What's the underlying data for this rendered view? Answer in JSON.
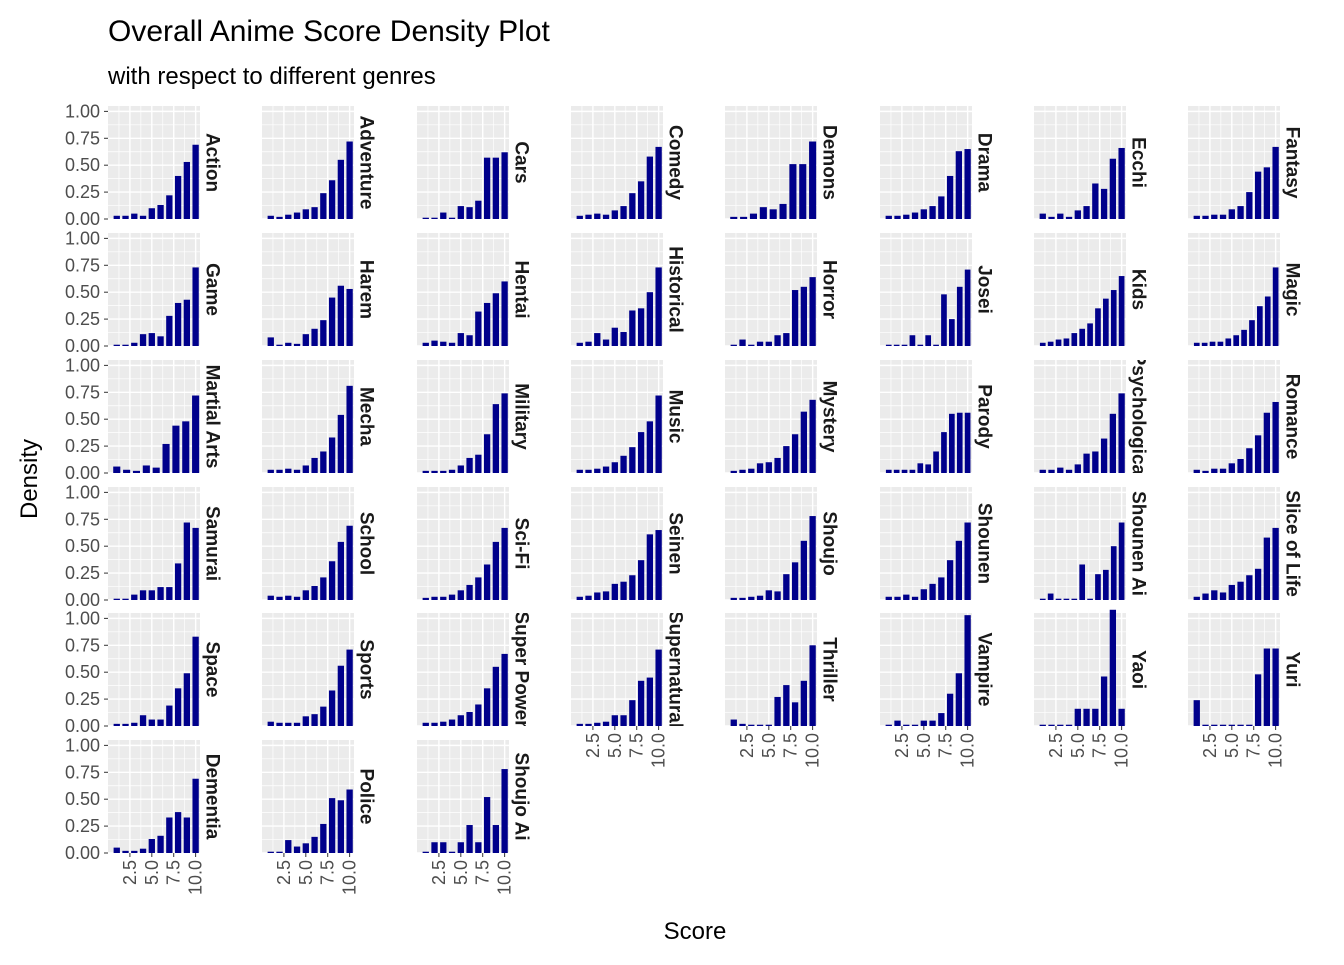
{
  "chart_data": {
    "type": "bar",
    "title": "Overall Anime Score Density Plot",
    "subtitle": "with respect to different genres",
    "xlabel": "Score",
    "ylabel": "Density",
    "x_ticks": [
      "2.5",
      "5.0",
      "7.5",
      "10.0"
    ],
    "y_ticks": [
      "0.00",
      "0.25",
      "0.50",
      "0.75",
      "1.00"
    ],
    "xlim": [
      0,
      10.5
    ],
    "ylim": [
      0,
      1.05
    ],
    "bin_centers": [
      1,
      2,
      3,
      4,
      5,
      6,
      7,
      8,
      9,
      10
    ],
    "bar_color": "#00008B",
    "panel_background": "#EBEBEB",
    "gridline_color": "#FFFFFF",
    "grid": true,
    "facet_strip_position": "right",
    "panels": [
      {
        "genre": "Action",
        "strip_label": "Action",
        "values": [
          0.03,
          0.03,
          0.05,
          0.03,
          0.1,
          0.13,
          0.22,
          0.4,
          0.53,
          0.69
        ]
      },
      {
        "genre": "Adventure",
        "strip_label": "Adventure",
        "values": [
          0.03,
          0.02,
          0.04,
          0.06,
          0.09,
          0.11,
          0.24,
          0.36,
          0.55,
          0.72
        ]
      },
      {
        "genre": "Cars",
        "strip_label": "Cars",
        "values": [
          0.0,
          0.0,
          0.06,
          0.0,
          0.12,
          0.11,
          0.17,
          0.57,
          0.57,
          0.62
        ]
      },
      {
        "genre": "Comedy",
        "strip_label": "Comedy",
        "values": [
          0.03,
          0.04,
          0.05,
          0.04,
          0.08,
          0.12,
          0.24,
          0.35,
          0.58,
          0.67
        ]
      },
      {
        "genre": "Demons",
        "strip_label": "Demons",
        "values": [
          0.02,
          0.02,
          0.05,
          0.11,
          0.09,
          0.14,
          0.51,
          0.51,
          0.72
        ]
      },
      {
        "genre": "Drama",
        "strip_label": "Drama",
        "values": [
          0.03,
          0.03,
          0.04,
          0.06,
          0.09,
          0.12,
          0.21,
          0.4,
          0.63,
          0.65
        ]
      },
      {
        "genre": "Ecchi",
        "strip_label": "Ecchi",
        "values": [
          0.05,
          0.02,
          0.05,
          0.02,
          0.08,
          0.12,
          0.33,
          0.28,
          0.56,
          0.66
        ]
      },
      {
        "genre": "Fantasy",
        "strip_label": "Fantasy",
        "values": [
          0.03,
          0.03,
          0.04,
          0.04,
          0.09,
          0.12,
          0.25,
          0.44,
          0.48,
          0.67
        ]
      },
      {
        "genre": "Game",
        "strip_label": "Game",
        "values": [
          0.0,
          0.0,
          0.03,
          0.11,
          0.12,
          0.09,
          0.28,
          0.4,
          0.43,
          0.73
        ]
      },
      {
        "genre": "Harem",
        "strip_label": "Harem",
        "values": [
          0.08,
          0.0,
          0.03,
          0.02,
          0.11,
          0.16,
          0.24,
          0.45,
          0.56,
          0.53
        ]
      },
      {
        "genre": "Hentai",
        "strip_label": "Hentai",
        "values": [
          0.03,
          0.05,
          0.04,
          0.03,
          0.12,
          0.1,
          0.32,
          0.4,
          0.49,
          0.6
        ]
      },
      {
        "genre": "Historical",
        "strip_label": "Historical",
        "values": [
          0.03,
          0.04,
          0.12,
          0.06,
          0.17,
          0.13,
          0.33,
          0.35,
          0.5,
          0.73
        ]
      },
      {
        "genre": "Horror",
        "strip_label": "Horror",
        "values": [
          0.0,
          0.06,
          0.0,
          0.04,
          0.04,
          0.1,
          0.12,
          0.52,
          0.55,
          0.64
        ]
      },
      {
        "genre": "Josei",
        "strip_label": "Josei",
        "values": [
          0.0,
          0.0,
          0.0,
          0.1,
          0.0,
          0.1,
          0.0,
          0.48,
          0.25,
          0.55,
          0.71
        ]
      },
      {
        "genre": "Kids",
        "strip_label": "Kids",
        "values": [
          0.03,
          0.04,
          0.06,
          0.07,
          0.12,
          0.16,
          0.21,
          0.35,
          0.44,
          0.52,
          0.65
        ]
      },
      {
        "genre": "Magic",
        "strip_label": "Magic",
        "values": [
          0.03,
          0.03,
          0.04,
          0.04,
          0.07,
          0.1,
          0.15,
          0.24,
          0.37,
          0.46,
          0.73
        ]
      },
      {
        "genre": "Martial Arts",
        "strip_label": "Martial Arts",
        "values": [
          0.06,
          0.03,
          0.02,
          0.07,
          0.05,
          0.27,
          0.44,
          0.48,
          0.72
        ]
      },
      {
        "genre": "Mecha",
        "strip_label": "Mecha",
        "values": [
          0.03,
          0.03,
          0.04,
          0.03,
          0.07,
          0.14,
          0.2,
          0.33,
          0.54,
          0.81
        ]
      },
      {
        "genre": "Military",
        "strip_label": "Military",
        "values": [
          0.02,
          0.02,
          0.02,
          0.03,
          0.07,
          0.14,
          0.17,
          0.36,
          0.64,
          0.74
        ]
      },
      {
        "genre": "Music",
        "strip_label": "Music",
        "values": [
          0.03,
          0.03,
          0.04,
          0.06,
          0.1,
          0.16,
          0.24,
          0.38,
          0.48,
          0.72
        ]
      },
      {
        "genre": "Mystery",
        "strip_label": "Mystery",
        "values": [
          0.02,
          0.03,
          0.04,
          0.09,
          0.1,
          0.14,
          0.25,
          0.36,
          0.57,
          0.68
        ]
      },
      {
        "genre": "Parody",
        "strip_label": "Parody",
        "values": [
          0.03,
          0.03,
          0.03,
          0.03,
          0.09,
          0.08,
          0.2,
          0.38,
          0.55,
          0.56,
          0.56
        ]
      },
      {
        "genre": "Psychological",
        "strip_label": "Psychological",
        "values": [
          0.03,
          0.03,
          0.05,
          0.03,
          0.08,
          0.18,
          0.2,
          0.32,
          0.55,
          0.74
        ]
      },
      {
        "genre": "Romance",
        "strip_label": "Romance",
        "values": [
          0.03,
          0.02,
          0.04,
          0.04,
          0.09,
          0.13,
          0.23,
          0.35,
          0.56,
          0.66
        ]
      },
      {
        "genre": "Samurai",
        "strip_label": "Samurai",
        "values": [
          0.0,
          0.0,
          0.05,
          0.09,
          0.09,
          0.12,
          0.12,
          0.34,
          0.72,
          0.67
        ]
      },
      {
        "genre": "School",
        "strip_label": "School",
        "values": [
          0.04,
          0.03,
          0.04,
          0.03,
          0.09,
          0.13,
          0.21,
          0.36,
          0.54,
          0.69
        ]
      },
      {
        "genre": "Sci-Fi",
        "strip_label": "Sci-Fi",
        "values": [
          0.02,
          0.03,
          0.03,
          0.05,
          0.09,
          0.14,
          0.21,
          0.33,
          0.54,
          0.67
        ]
      },
      {
        "genre": "Seinen",
        "strip_label": "Seinen",
        "values": [
          0.03,
          0.04,
          0.07,
          0.08,
          0.15,
          0.17,
          0.23,
          0.37,
          0.61,
          0.65
        ]
      },
      {
        "genre": "Shoujo",
        "strip_label": "Shoujo",
        "values": [
          0.02,
          0.02,
          0.03,
          0.04,
          0.09,
          0.08,
          0.24,
          0.35,
          0.55,
          0.78
        ]
      },
      {
        "genre": "Shounen",
        "strip_label": "Shounen",
        "values": [
          0.03,
          0.03,
          0.05,
          0.03,
          0.1,
          0.15,
          0.21,
          0.37,
          0.55,
          0.72
        ]
      },
      {
        "genre": "Shounen Ai",
        "strip_label": "Shounen Ai",
        "values": [
          0.0,
          0.06,
          0.0,
          0.0,
          0.0,
          0.33,
          0.0,
          0.24,
          0.28,
          0.5,
          0.72
        ]
      },
      {
        "genre": "Slice of Life",
        "strip_label": "Slice of Life",
        "values": [
          0.03,
          0.06,
          0.09,
          0.07,
          0.14,
          0.17,
          0.23,
          0.29,
          0.58,
          0.67
        ]
      },
      {
        "genre": "Space",
        "strip_label": "Space",
        "values": [
          0.02,
          0.02,
          0.03,
          0.1,
          0.06,
          0.06,
          0.19,
          0.35,
          0.49,
          0.83
        ]
      },
      {
        "genre": "Sports",
        "strip_label": "Sports",
        "values": [
          0.04,
          0.03,
          0.03,
          0.03,
          0.09,
          0.11,
          0.18,
          0.33,
          0.56,
          0.71
        ]
      },
      {
        "genre": "Super Power",
        "strip_label": "Super Power",
        "values": [
          0.03,
          0.03,
          0.04,
          0.06,
          0.1,
          0.13,
          0.2,
          0.35,
          0.55,
          0.67
        ]
      },
      {
        "genre": "Supernatural",
        "strip_label": "Supernatural",
        "values": [
          0.02,
          0.02,
          0.03,
          0.04,
          0.1,
          0.1,
          0.24,
          0.42,
          0.45,
          0.71
        ]
      },
      {
        "genre": "Thriller",
        "strip_label": "Thriller",
        "values": [
          0.06,
          0.02,
          0.0,
          0.0,
          0.0,
          0.27,
          0.38,
          0.22,
          0.42,
          0.75
        ]
      },
      {
        "genre": "Vampire",
        "strip_label": "Vampire",
        "values": [
          0.0,
          0.05,
          0.0,
          0.0,
          0.05,
          0.05,
          0.12,
          0.3,
          0.49,
          1.03
        ]
      },
      {
        "genre": "Yaoi",
        "strip_label": "Yaoi",
        "values": [
          0.0,
          0.0,
          0.0,
          0.0,
          0.16,
          0.16,
          0.16,
          0.46,
          1.08,
          0.16
        ]
      },
      {
        "genre": "Yuri",
        "strip_label": "Yuri",
        "values": [
          0.24,
          0.0,
          0.0,
          0.0,
          0.0,
          0.0,
          0.0,
          0.48,
          0.72,
          0.72
        ]
      },
      {
        "genre": "Dementia",
        "strip_label": "Dementia",
        "values": [
          0.05,
          0.02,
          0.02,
          0.04,
          0.13,
          0.16,
          0.33,
          0.38,
          0.33,
          0.69
        ]
      },
      {
        "genre": "Police",
        "strip_label": "Police",
        "values": [
          0.0,
          0.0,
          0.12,
          0.06,
          0.09,
          0.15,
          0.27,
          0.51,
          0.49,
          0.59
        ]
      },
      {
        "genre": "Shoujo Ai",
        "strip_label": "Shoujo Ai",
        "values": [
          0.0,
          0.1,
          0.1,
          0.0,
          0.1,
          0.26,
          0.1,
          0.52,
          0.26,
          0.78
        ]
      }
    ]
  }
}
